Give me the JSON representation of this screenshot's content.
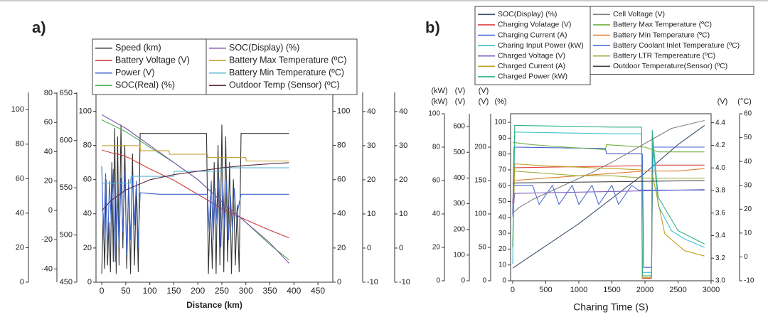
{
  "chart_data": [
    {
      "type": "line",
      "title": "a)",
      "x_label": "Distance (km)",
      "xlim": [
        -12,
        481
      ],
      "xticks": [
        0,
        50,
        100,
        150,
        200,
        250,
        300,
        350,
        400,
        450
      ],
      "yaxes": [
        {
          "side": "left",
          "ylim": [
            0,
            110
          ],
          "yticks": [
            0,
            20,
            40,
            60,
            80,
            100
          ]
        },
        {
          "side": "left",
          "ylim": [
            -49,
            80.5
          ],
          "yticks": [
            -40,
            -20,
            0,
            20,
            40,
            60,
            80
          ]
        },
        {
          "side": "left",
          "ylim": [
            450,
            651
          ],
          "yticks": [
            450,
            500,
            550,
            600,
            650
          ]
        },
        {
          "side": "left",
          "ylim": [
            0,
            111
          ],
          "yticks": [
            0,
            20,
            40,
            60,
            80,
            100
          ]
        },
        {
          "side": "right",
          "ylim": [
            0,
            111
          ],
          "yticks": [
            0,
            20,
            40,
            60,
            80,
            100
          ]
        },
        {
          "side": "right",
          "ylim": [
            -10,
            45.6
          ],
          "yticks": [
            -10,
            0,
            10,
            20,
            30,
            40
          ]
        },
        {
          "side": "right",
          "ylim": [
            -10,
            45.6
          ],
          "yticks": [
            -10,
            0,
            10,
            20,
            30,
            40
          ]
        }
      ],
      "series_groups": [
        [
          {
            "name": "Speed (km)",
            "color": "#333333",
            "axis": 3,
            "x": [
              0,
              3,
              6,
              9,
              12,
              15,
              18,
              21,
              24,
              27,
              30,
              33,
              36,
              40,
              44,
              48,
              52,
              56,
              60,
              64,
              68,
              72,
              76,
              80,
              100,
              150,
              200,
              218,
              222,
              226,
              230,
              234,
              238,
              242,
              246,
              250,
              254,
              258,
              262,
              266,
              270,
              274,
              278,
              282,
              286,
              290,
              300,
              350,
              390
            ],
            "values": [
              5,
              40,
              8,
              60,
              10,
              35,
              6,
              70,
              12,
              90,
              5,
              85,
              10,
              92,
              20,
              80,
              8,
              60,
              5,
              75,
              10,
              55,
              6,
              87,
              87,
              87,
              87,
              87,
              5,
              50,
              8,
              70,
              5,
              80,
              10,
              92,
              6,
              85,
              12,
              70,
              5,
              60,
              10,
              45,
              6,
              87,
              87,
              87,
              87
            ]
          },
          {
            "name": "Battery Voltage (V)",
            "color": "#d03a3a",
            "axis": 2,
            "x": [
              0,
              20,
              40,
              60,
              70,
              100,
              150,
              200,
              250,
              300,
              350,
              390
            ],
            "values": [
              590,
              587,
              585,
              581,
              578,
              570,
              558,
              543,
              528,
              516,
              505,
              497
            ]
          },
          {
            "name": "Power (V)",
            "color": "#3d63c9",
            "axis": 1,
            "x": [
              0,
              4,
              8,
              12,
              16,
              20,
              24,
              28,
              32,
              36,
              40,
              44,
              48,
              52,
              56,
              60,
              64,
              68,
              72,
              76,
              80,
              120,
              200,
              220,
              224,
              228,
              232,
              236,
              240,
              244,
              248,
              252,
              256,
              260,
              264,
              268,
              272,
              276,
              280,
              290,
              300,
              390
            ],
            "values": [
              30,
              -20,
              25,
              -30,
              20,
              -10,
              28,
              -35,
              15,
              -25,
              22,
              -15,
              26,
              -30,
              18,
              -20,
              24,
              -10,
              20,
              -25,
              12,
              11,
              11,
              11,
              -15,
              20,
              -20,
              15,
              -10,
              22,
              -25,
              18,
              -12,
              20,
              -20,
              10,
              -15,
              15,
              -5,
              11,
              11,
              11
            ]
          },
          {
            "name": "SOC(Real) (%)",
            "color": "#4caf50",
            "axis": 3,
            "x": [
              0,
              50,
              100,
              150,
              200,
              250,
              300,
              350,
              390
            ],
            "values": [
              95,
              88,
              79,
              70,
              60,
              47,
              35,
              22,
              13
            ]
          }
        ],
        [
          {
            "name": "SOC(Display) (%)",
            "color": "#7b52ab",
            "axis": 3,
            "x": [
              0,
              50,
              100,
              150,
              200,
              250,
              300,
              350,
              390
            ],
            "values": [
              98,
              90,
              80,
              70,
              60,
              47,
              35,
              23,
              11
            ]
          },
          {
            "name": "Battery Max Temperature (ºC)",
            "color": "#c0a030",
            "axis": 5,
            "x": [
              0,
              30,
              80,
              81,
              140,
              141,
              220,
              221,
              300,
              301,
              390
            ],
            "values": [
              30,
              30,
              30,
              28.5,
              28.5,
              27.5,
              27.5,
              26.5,
              26.5,
              25.5,
              25.5
            ]
          },
          {
            "name": "Battery Min Temperature (ºC)",
            "color": "#5ab4d6",
            "axis": 5,
            "x": [
              0,
              60,
              61,
              150,
              151,
              250,
              251,
              390
            ],
            "values": [
              19,
              19,
              21,
              21,
              22.5,
              22.5,
              23.5,
              23.5
            ]
          },
          {
            "name": "Outdoor Temp (Sensor) (ºC)",
            "color": "#5a2a40",
            "axis": 6,
            "x": [
              0,
              20,
              50,
              100,
              150,
              200,
              250,
              300,
              350,
              390
            ],
            "values": [
              11,
              14,
              17,
              20,
              21.5,
              22.5,
              23.5,
              24.2,
              24.7,
              25
            ]
          }
        ]
      ]
    },
    {
      "type": "line",
      "title": "b)",
      "x_label": "Charing Time (S)",
      "xlim": [
        -32,
        3000
      ],
      "xticks": [
        0,
        500,
        1000,
        1500,
        2000,
        2500,
        3000
      ],
      "yaxes": [
        {
          "side": "left",
          "ylim": [
            0,
            100
          ],
          "yticks": [
            0,
            20,
            40,
            60,
            80,
            100
          ],
          "labels": [
            "(kW)",
            "(kW)"
          ],
          "label_colors": [
            "#3a9a3a",
            "#30b0c8"
          ]
        },
        {
          "side": "left",
          "ylim": [
            0,
            650
          ],
          "yticks": [
            0,
            100,
            200,
            300,
            400,
            500,
            600
          ],
          "labels": [
            "(V)",
            "(V)"
          ],
          "label_colors": [
            "#3050c0",
            "#a0a020"
          ]
        },
        {
          "side": "left",
          "ylim": [
            0,
            250
          ],
          "yticks": [
            0,
            50,
            100,
            150,
            200
          ],
          "labels": [
            "(V)",
            "(V)"
          ],
          "label_colors": [
            "#d03030",
            "#7050b0"
          ]
        },
        {
          "side": "left",
          "ylim": [
            0,
            105.4
          ],
          "yticks": [
            0,
            10,
            20,
            30,
            40,
            50,
            60,
            70,
            80,
            90,
            100
          ],
          "labels": [
            "(%)"
          ],
          "label_colors": [
            "#333333"
          ]
        },
        {
          "side": "right",
          "ylim": [
            3,
            4.48
          ],
          "yticks": [
            {
              "value": 3,
              "label": "3.0"
            },
            3.2,
            3.4,
            3.6,
            3.8,
            {
              "value": 4,
              "label": "4.0"
            },
            4.2,
            4.4
          ],
          "labels": [
            "(V)"
          ],
          "label_colors": [
            "#333333"
          ]
        },
        {
          "side": "right",
          "ylim": [
            -10,
            60
          ],
          "yticks": [
            -10,
            0,
            10,
            20,
            30,
            40,
            50,
            60
          ],
          "labels": [
            "(°C)"
          ],
          "label_colors": [
            "#333333"
          ]
        }
      ],
      "series_groups": [
        [
          {
            "name": "SOC(Display) (%)",
            "color": "#3a5070",
            "axis": 3,
            "x": [
              0,
              500,
              1000,
              1500,
              2000,
              2500,
              2900
            ],
            "values": [
              8,
              22,
              36,
              52,
              68,
              86,
              98
            ]
          },
          {
            "name": "Charging Volatage (V)",
            "color": "#e04040",
            "axis": 1,
            "x": [
              0,
              30,
              500,
              1000,
              1500,
              1950,
              1960,
              2100,
              2110,
              2900
            ],
            "values": [
              300,
              440,
              442,
              444,
              446,
              448,
              10,
              10,
              450,
              450
            ]
          },
          {
            "name": "Charging Current (A)",
            "color": "#4060d0",
            "axis": 2,
            "x": [
              0,
              20,
              1400,
              1420,
              1960,
              1980,
              2100,
              2120,
              2900
            ],
            "values": [
              100,
              200,
              198,
              190,
              190,
              20,
              20,
              200,
              200
            ]
          },
          {
            "name": "Charing Input Power (kW)",
            "color": "#40c0d0",
            "axis": 0,
            "x": [
              0,
              30,
              1500,
              1950,
              1960,
              2100,
              2110,
              2200,
              2400,
              2600,
              2900
            ],
            "values": [
              10,
              89,
              88,
              88,
              5,
              5,
              85,
              45,
              30,
              25,
              20
            ]
          },
          {
            "name": "Charged Voltage (V)",
            "color": "#8060c0",
            "axis": 1,
            "x": [
              0,
              30,
              1000,
              2000,
              2900
            ],
            "values": [
              250,
              340,
              345,
              350,
              355
            ]
          },
          {
            "name": "Charged Current (A)",
            "color": "#c0a020",
            "axis": 2,
            "x": [
              0,
              30,
              500,
              1000,
              1500,
              1950,
              1960,
              2100,
              2110,
              2300,
              2600,
              2900
            ],
            "values": [
              50,
              175,
              172,
              170,
              168,
              166,
              5,
              5,
              160,
              70,
              45,
              37
            ]
          },
          {
            "name": "Charged Power (kW)",
            "color": "#30b080",
            "axis": 0,
            "x": [
              0,
              30,
              1500,
              1950,
              1960,
              2100,
              2110,
              2200,
              2500,
              2900
            ],
            "values": [
              20,
              93,
              92,
              92,
              3,
              3,
              90,
              50,
              30,
              22
            ]
          }
        ],
        [
          {
            "name": "Cell Voltage (V)",
            "color": "#808080",
            "axis": 4,
            "x": [
              0,
              100,
              300,
              600,
              900,
              1200,
              1500,
              1800,
              2100,
              2400,
              2900
            ],
            "values": [
              3.6,
              3.65,
              3.72,
              3.8,
              3.88,
              3.96,
              4.05,
              4.15,
              4.25,
              4.35,
              4.42
            ]
          },
          {
            "name": "Battery Max Temperature (ºC)",
            "color": "#70b040",
            "axis": 5,
            "x": [
              0,
              300,
              800,
              1400,
              1420,
              2000,
              2100,
              2200,
              2900
            ],
            "values": [
              48,
              47,
              46,
              45,
              47,
              46,
              45,
              44,
              44
            ]
          },
          {
            "name": "Battery Min Temperature (ºC)",
            "color": "#e08030",
            "axis": 5,
            "x": [
              0,
              500,
              1000,
              1500,
              2000,
              2500,
              2900
            ],
            "values": [
              32,
              33,
              34,
              35,
              36,
              36,
              37
            ]
          },
          {
            "name": "Battery Coolant Inlet Temperature (ºC)",
            "color": "#5070d0",
            "axis": 5,
            "x": [
              0,
              300,
              400,
              600,
              700,
              900,
              1000,
              1200,
              1300,
              1500,
              1600,
              1800,
              1900,
              2900
            ],
            "values": [
              30,
              30,
              22,
              30,
              22,
              30,
              22,
              30,
              22,
              30,
              22,
              30,
              28,
              28
            ]
          },
          {
            "name": "Battery LTR Tempereature (ºC)",
            "color": "#a0b040",
            "axis": 5,
            "x": [
              0,
              500,
              1000,
              1500,
              2000,
              2500,
              2900
            ],
            "values": [
              36,
              35,
              34,
              34,
              33,
              33,
              33
            ]
          },
          {
            "name": "Outdoor Temperature(Sensor) (ºC)",
            "color": "#404040",
            "axis": 5,
            "x": [
              0,
              2900
            ],
            "values": [
              31,
              32
            ]
          }
        ]
      ]
    }
  ]
}
